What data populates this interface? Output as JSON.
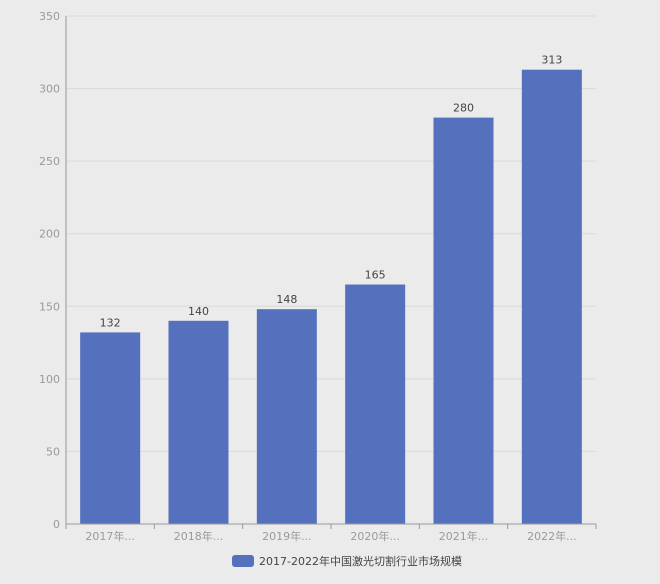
{
  "chart_data": {
    "type": "bar",
    "title": "",
    "xlabel": "",
    "ylabel": "",
    "categories": [
      "2017年...",
      "2018年...",
      "2019年...",
      "2020年...",
      "2021年...",
      "2022年..."
    ],
    "series": [
      {
        "name": "2017-2022年中国激光切割行业市场规模",
        "values": [
          132,
          140,
          148,
          165,
          280,
          313
        ],
        "color": "#5570bd"
      }
    ],
    "ylim": [
      0,
      350
    ],
    "yticks": [
      0,
      50,
      100,
      150,
      200,
      250,
      300,
      350
    ],
    "grid": true,
    "legend_position": "bottom-center",
    "data_labels": true
  },
  "colors": {
    "background": "#ebebeb",
    "grid": "#d9d9d9",
    "axis": "#9a9a9a",
    "tick_text": "#9a9a9a",
    "label_text": "#444444"
  }
}
